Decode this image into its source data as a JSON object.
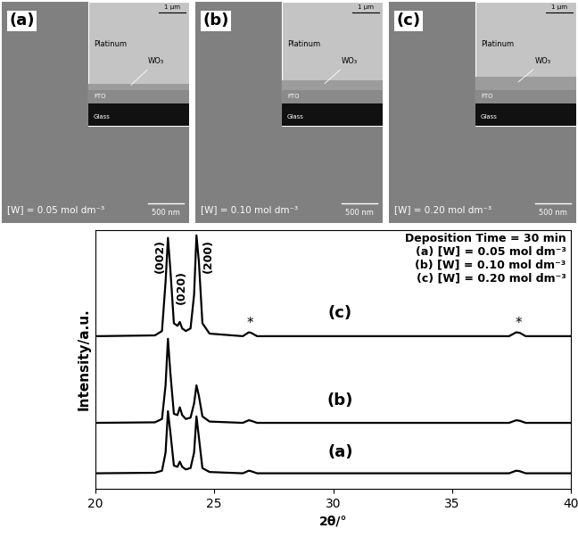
{
  "panels": [
    {
      "label": "(a)",
      "caption": "[W] = 0.05 mol dm⁻³",
      "scale_bar": "500 nm",
      "inset": {
        "scale_bar": "1 μm",
        "layers": [
          "Platinum",
          "FTO",
          "Glass"
        ],
        "film": "WO₃"
      }
    },
    {
      "label": "(b)",
      "caption": "[W] = 0.10 mol dm⁻³",
      "scale_bar": "500 nm",
      "inset": {
        "scale_bar": "1 μm",
        "layers": [
          "Platinum",
          "FTO",
          "Glass"
        ],
        "film": "WO₃"
      }
    },
    {
      "label": "(c)",
      "caption": "[W] = 0.20 mol dm⁻³",
      "scale_bar": "500 nm",
      "inset": {
        "scale_bar": "1 μm",
        "layers": [
          "Platinum",
          "FTO",
          "Glass"
        ],
        "film": "WO₃"
      }
    }
  ],
  "chart_data": {
    "type": "line",
    "x_label": "2θ/°",
    "y_label": "Intensity/a.u.",
    "xlim": [
      20,
      40
    ],
    "xticks": [
      20,
      25,
      30,
      35,
      40
    ],
    "ylim": [
      0,
      100
    ],
    "tick_labels": "x",
    "text_block": [
      "Deposition Time = 30 min",
      "(a) [W] = 0.05 mol dm⁻³",
      "(b) [W] = 0.10 mol dm⁻³",
      "(c) [W] = 0.20 mol dm⁻³"
    ],
    "peak_labels": [
      "(002)",
      "(020)",
      "(200)"
    ],
    "marker_label": "*",
    "x": [
      20,
      22.5,
      22.8,
      22.95,
      23.05,
      23.15,
      23.3,
      23.45,
      23.55,
      23.65,
      23.8,
      24.0,
      24.15,
      24.25,
      24.35,
      24.5,
      24.8,
      26.2,
      26.45,
      26.55,
      26.8,
      37.4,
      37.7,
      37.85,
      38.1,
      40
    ],
    "series": [
      {
        "name": "(a)",
        "color": "#000000",
        "values": [
          6,
          6.2,
          7,
          14,
          30,
          22,
          9,
          8.5,
          10.5,
          8.5,
          7.5,
          8,
          14,
          28,
          20,
          8,
          6.5,
          6,
          7,
          6.8,
          6,
          6,
          7,
          6.8,
          6,
          6
        ]
      },
      {
        "name": "(b)",
        "color": "#000000",
        "values": [
          25.5,
          25.7,
          27,
          40,
          58,
          45,
          29,
          28.5,
          31.5,
          28.5,
          27,
          27.5,
          33,
          40,
          36,
          28,
          26,
          25.5,
          26.5,
          26.3,
          25.5,
          25.5,
          26.5,
          26.3,
          25.5,
          25.5
        ]
      },
      {
        "name": "(c)",
        "color": "#000000",
        "values": [
          59,
          59.3,
          61,
          80,
          97,
          85,
          64,
          63,
          64.5,
          62,
          61,
          62,
          75,
          98,
          88,
          64,
          60,
          59,
          60.5,
          60.3,
          59,
          59,
          60.5,
          60.3,
          59,
          59
        ]
      }
    ]
  }
}
